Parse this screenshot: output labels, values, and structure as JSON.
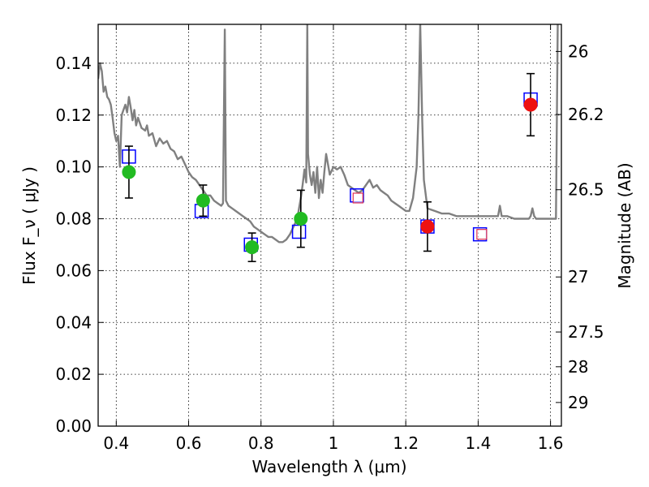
{
  "chart_data": {
    "type": "scatter",
    "title": "",
    "xlabel": "Wavelength  λ (μm)",
    "ylabel": "Flux  F_ν  ( μJy )",
    "ylabel_right": "Magnitude (AB)",
    "xlim": [
      0.35,
      1.63
    ],
    "ylim": [
      0.0,
      0.155
    ],
    "grid": true,
    "x_ticks": [
      {
        "value": 0.4,
        "label": "0.4"
      },
      {
        "value": 0.6,
        "label": "0.6"
      },
      {
        "value": 0.8,
        "label": "0.8"
      },
      {
        "value": 1.0,
        "label": "1"
      },
      {
        "value": 1.2,
        "label": "1.2"
      },
      {
        "value": 1.4,
        "label": "1.4"
      },
      {
        "value": 1.6,
        "label": "1.6"
      }
    ],
    "y_ticks": [
      {
        "value": 0.0,
        "label": "0.00"
      },
      {
        "value": 0.02,
        "label": "0.02"
      },
      {
        "value": 0.04,
        "label": "0.04"
      },
      {
        "value": 0.06,
        "label": "0.06"
      },
      {
        "value": 0.08,
        "label": "0.08"
      },
      {
        "value": 0.1,
        "label": "0.10"
      },
      {
        "value": 0.12,
        "label": "0.12"
      },
      {
        "value": 0.14,
        "label": "0.14"
      }
    ],
    "right_ticks": [
      {
        "value": 26,
        "label": "26"
      },
      {
        "value": 26.2,
        "label": "26.2"
      },
      {
        "value": 26.5,
        "label": "26.5"
      },
      {
        "value": 27,
        "label": "27"
      },
      {
        "value": 27.5,
        "label": "27.5"
      },
      {
        "value": 28,
        "label": "28"
      },
      {
        "value": 29,
        "label": "29"
      }
    ],
    "template_sed": {
      "color": "#808080",
      "points": [
        [
          0.35,
          0.134
        ],
        [
          0.355,
          0.14
        ],
        [
          0.36,
          0.137
        ],
        [
          0.365,
          0.129
        ],
        [
          0.37,
          0.131
        ],
        [
          0.375,
          0.127
        ],
        [
          0.38,
          0.126
        ],
        [
          0.385,
          0.124
        ],
        [
          0.39,
          0.119
        ],
        [
          0.395,
          0.113
        ],
        [
          0.4,
          0.11
        ],
        [
          0.405,
          0.112
        ],
        [
          0.41,
          0.1
        ],
        [
          0.415,
          0.12
        ],
        [
          0.42,
          0.122
        ],
        [
          0.425,
          0.124
        ],
        [
          0.43,
          0.121
        ],
        [
          0.435,
          0.127
        ],
        [
          0.44,
          0.123
        ],
        [
          0.445,
          0.118
        ],
        [
          0.45,
          0.122
        ],
        [
          0.455,
          0.116
        ],
        [
          0.46,
          0.119
        ],
        [
          0.465,
          0.117
        ],
        [
          0.47,
          0.115
        ],
        [
          0.48,
          0.114
        ],
        [
          0.485,
          0.116
        ],
        [
          0.49,
          0.112
        ],
        [
          0.5,
          0.113
        ],
        [
          0.51,
          0.108
        ],
        [
          0.52,
          0.111
        ],
        [
          0.53,
          0.109
        ],
        [
          0.54,
          0.11
        ],
        [
          0.55,
          0.107
        ],
        [
          0.56,
          0.106
        ],
        [
          0.57,
          0.103
        ],
        [
          0.58,
          0.104
        ],
        [
          0.59,
          0.101
        ],
        [
          0.6,
          0.098
        ],
        [
          0.61,
          0.096
        ],
        [
          0.62,
          0.095
        ],
        [
          0.63,
          0.093
        ],
        [
          0.64,
          0.091
        ],
        [
          0.65,
          0.089
        ],
        [
          0.66,
          0.089
        ],
        [
          0.67,
          0.087
        ],
        [
          0.68,
          0.086
        ],
        [
          0.69,
          0.085
        ],
        [
          0.695,
          0.086
        ],
        [
          0.7,
          0.153
        ],
        [
          0.703,
          0.087
        ],
        [
          0.71,
          0.085
        ],
        [
          0.72,
          0.084
        ],
        [
          0.73,
          0.083
        ],
        [
          0.74,
          0.082
        ],
        [
          0.75,
          0.081
        ],
        [
          0.76,
          0.08
        ],
        [
          0.77,
          0.079
        ],
        [
          0.78,
          0.077
        ],
        [
          0.79,
          0.076
        ],
        [
          0.8,
          0.075
        ],
        [
          0.81,
          0.074
        ],
        [
          0.82,
          0.073
        ],
        [
          0.83,
          0.073
        ],
        [
          0.84,
          0.072
        ],
        [
          0.85,
          0.071
        ],
        [
          0.86,
          0.071
        ],
        [
          0.87,
          0.072
        ],
        [
          0.88,
          0.074
        ],
        [
          0.89,
          0.077
        ],
        [
          0.9,
          0.08
        ],
        [
          0.905,
          0.084
        ],
        [
          0.91,
          0.088
        ],
        [
          0.915,
          0.093
        ],
        [
          0.92,
          0.099
        ],
        [
          0.925,
          0.094
        ],
        [
          0.928,
          0.155
        ],
        [
          0.93,
          0.105
        ],
        [
          0.935,
          0.097
        ],
        [
          0.94,
          0.093
        ],
        [
          0.945,
          0.098
        ],
        [
          0.95,
          0.09
        ],
        [
          0.955,
          0.1
        ],
        [
          0.96,
          0.088
        ],
        [
          0.965,
          0.095
        ],
        [
          0.97,
          0.09
        ],
        [
          0.975,
          0.098
        ],
        [
          0.98,
          0.105
        ],
        [
          0.985,
          0.101
        ],
        [
          0.99,
          0.097
        ],
        [
          1.0,
          0.1
        ],
        [
          1.01,
          0.099
        ],
        [
          1.02,
          0.1
        ],
        [
          1.03,
          0.097
        ],
        [
          1.04,
          0.093
        ],
        [
          1.05,
          0.092
        ],
        [
          1.06,
          0.091
        ],
        [
          1.07,
          0.09
        ],
        [
          1.08,
          0.091
        ],
        [
          1.09,
          0.093
        ],
        [
          1.1,
          0.095
        ],
        [
          1.11,
          0.092
        ],
        [
          1.12,
          0.093
        ],
        [
          1.13,
          0.091
        ],
        [
          1.14,
          0.09
        ],
        [
          1.15,
          0.089
        ],
        [
          1.16,
          0.087
        ],
        [
          1.17,
          0.086
        ],
        [
          1.18,
          0.085
        ],
        [
          1.19,
          0.084
        ],
        [
          1.2,
          0.083
        ],
        [
          1.21,
          0.083
        ],
        [
          1.22,
          0.088
        ],
        [
          1.23,
          0.1
        ],
        [
          1.235,
          0.12
        ],
        [
          1.24,
          0.155
        ],
        [
          1.245,
          0.12
        ],
        [
          1.25,
          0.095
        ],
        [
          1.26,
          0.084
        ],
        [
          1.28,
          0.083
        ],
        [
          1.3,
          0.082
        ],
        [
          1.32,
          0.082
        ],
        [
          1.34,
          0.081
        ],
        [
          1.36,
          0.081
        ],
        [
          1.38,
          0.081
        ],
        [
          1.4,
          0.081
        ],
        [
          1.42,
          0.081
        ],
        [
          1.44,
          0.081
        ],
        [
          1.455,
          0.081
        ],
        [
          1.46,
          0.085
        ],
        [
          1.465,
          0.081
        ],
        [
          1.48,
          0.081
        ],
        [
          1.5,
          0.08
        ],
        [
          1.52,
          0.08
        ],
        [
          1.535,
          0.08
        ],
        [
          1.54,
          0.08
        ],
        [
          1.545,
          0.081
        ],
        [
          1.55,
          0.084
        ],
        [
          1.555,
          0.081
        ],
        [
          1.56,
          0.08
        ],
        [
          1.58,
          0.08
        ],
        [
          1.6,
          0.08
        ],
        [
          1.615,
          0.08
        ],
        [
          1.62,
          0.155
        ]
      ]
    },
    "model_points": {
      "style": "open-square",
      "color": "#0000ff",
      "points": [
        {
          "x": 0.435,
          "y": 0.104
        },
        {
          "x": 0.636,
          "y": 0.083
        },
        {
          "x": 0.772,
          "y": 0.07
        },
        {
          "x": 0.905,
          "y": 0.075
        },
        {
          "x": 1.065,
          "y": 0.089
        },
        {
          "x": 1.26,
          "y": 0.077
        },
        {
          "x": 1.405,
          "y": 0.074
        },
        {
          "x": 1.545,
          "y": 0.126
        }
      ]
    },
    "upper_limits": {
      "style": "open-square-pink",
      "color": "#e03050",
      "points": [
        {
          "x": 1.068,
          "y": 0.088
        },
        {
          "x": 1.41,
          "y": 0.074
        }
      ]
    },
    "series": [
      {
        "color": "#22bb22",
        "style": "filled-circle",
        "points": [
          {
            "x": 0.435,
            "y": 0.098,
            "yerr": 0.01
          },
          {
            "x": 0.64,
            "y": 0.087,
            "yerr": 0.006
          },
          {
            "x": 0.775,
            "y": 0.069,
            "yerr": 0.0055
          },
          {
            "x": 0.91,
            "y": 0.08,
            "yerr": 0.011
          }
        ]
      },
      {
        "color": "#ee1111",
        "style": "filled-circle",
        "points": [
          {
            "x": 1.26,
            "y": 0.077,
            "yerr": 0.0095
          },
          {
            "x": 1.545,
            "y": 0.124,
            "yerr": 0.012
          }
        ]
      }
    ]
  }
}
